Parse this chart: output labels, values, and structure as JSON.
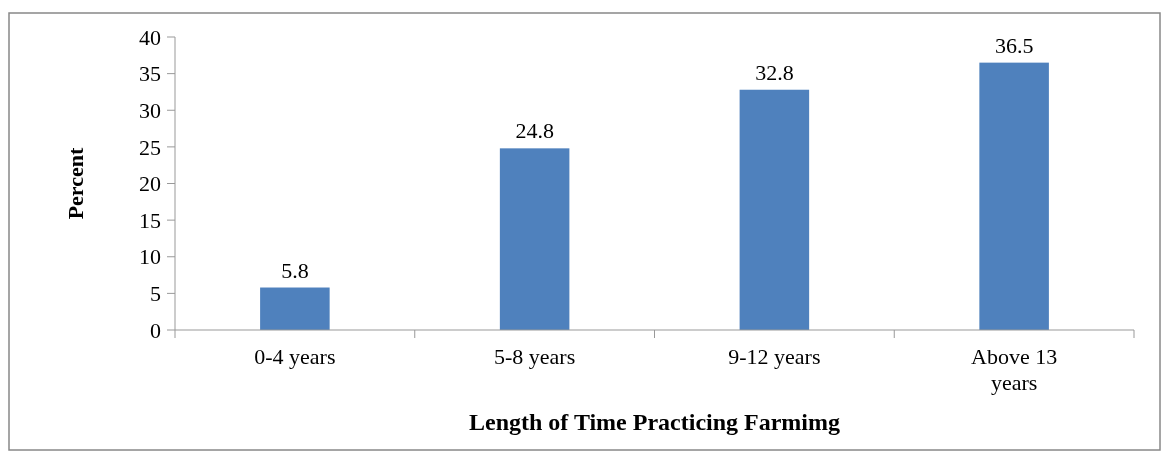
{
  "chart_data": {
    "type": "bar",
    "xlabel": "Length of Time Practicing Farmimg",
    "ylabel": "Percent",
    "categories": [
      "0-4 years",
      "5-8 years",
      "9-12 years",
      "Above 13 years"
    ],
    "values": [
      5.8,
      24.8,
      32.8,
      36.5
    ],
    "color": "#4f81bd",
    "ylim": [
      0,
      40
    ],
    "yticks": [
      0,
      5,
      10,
      15,
      20,
      25,
      30,
      35,
      40
    ],
    "grid": false,
    "data_labels": true
  }
}
